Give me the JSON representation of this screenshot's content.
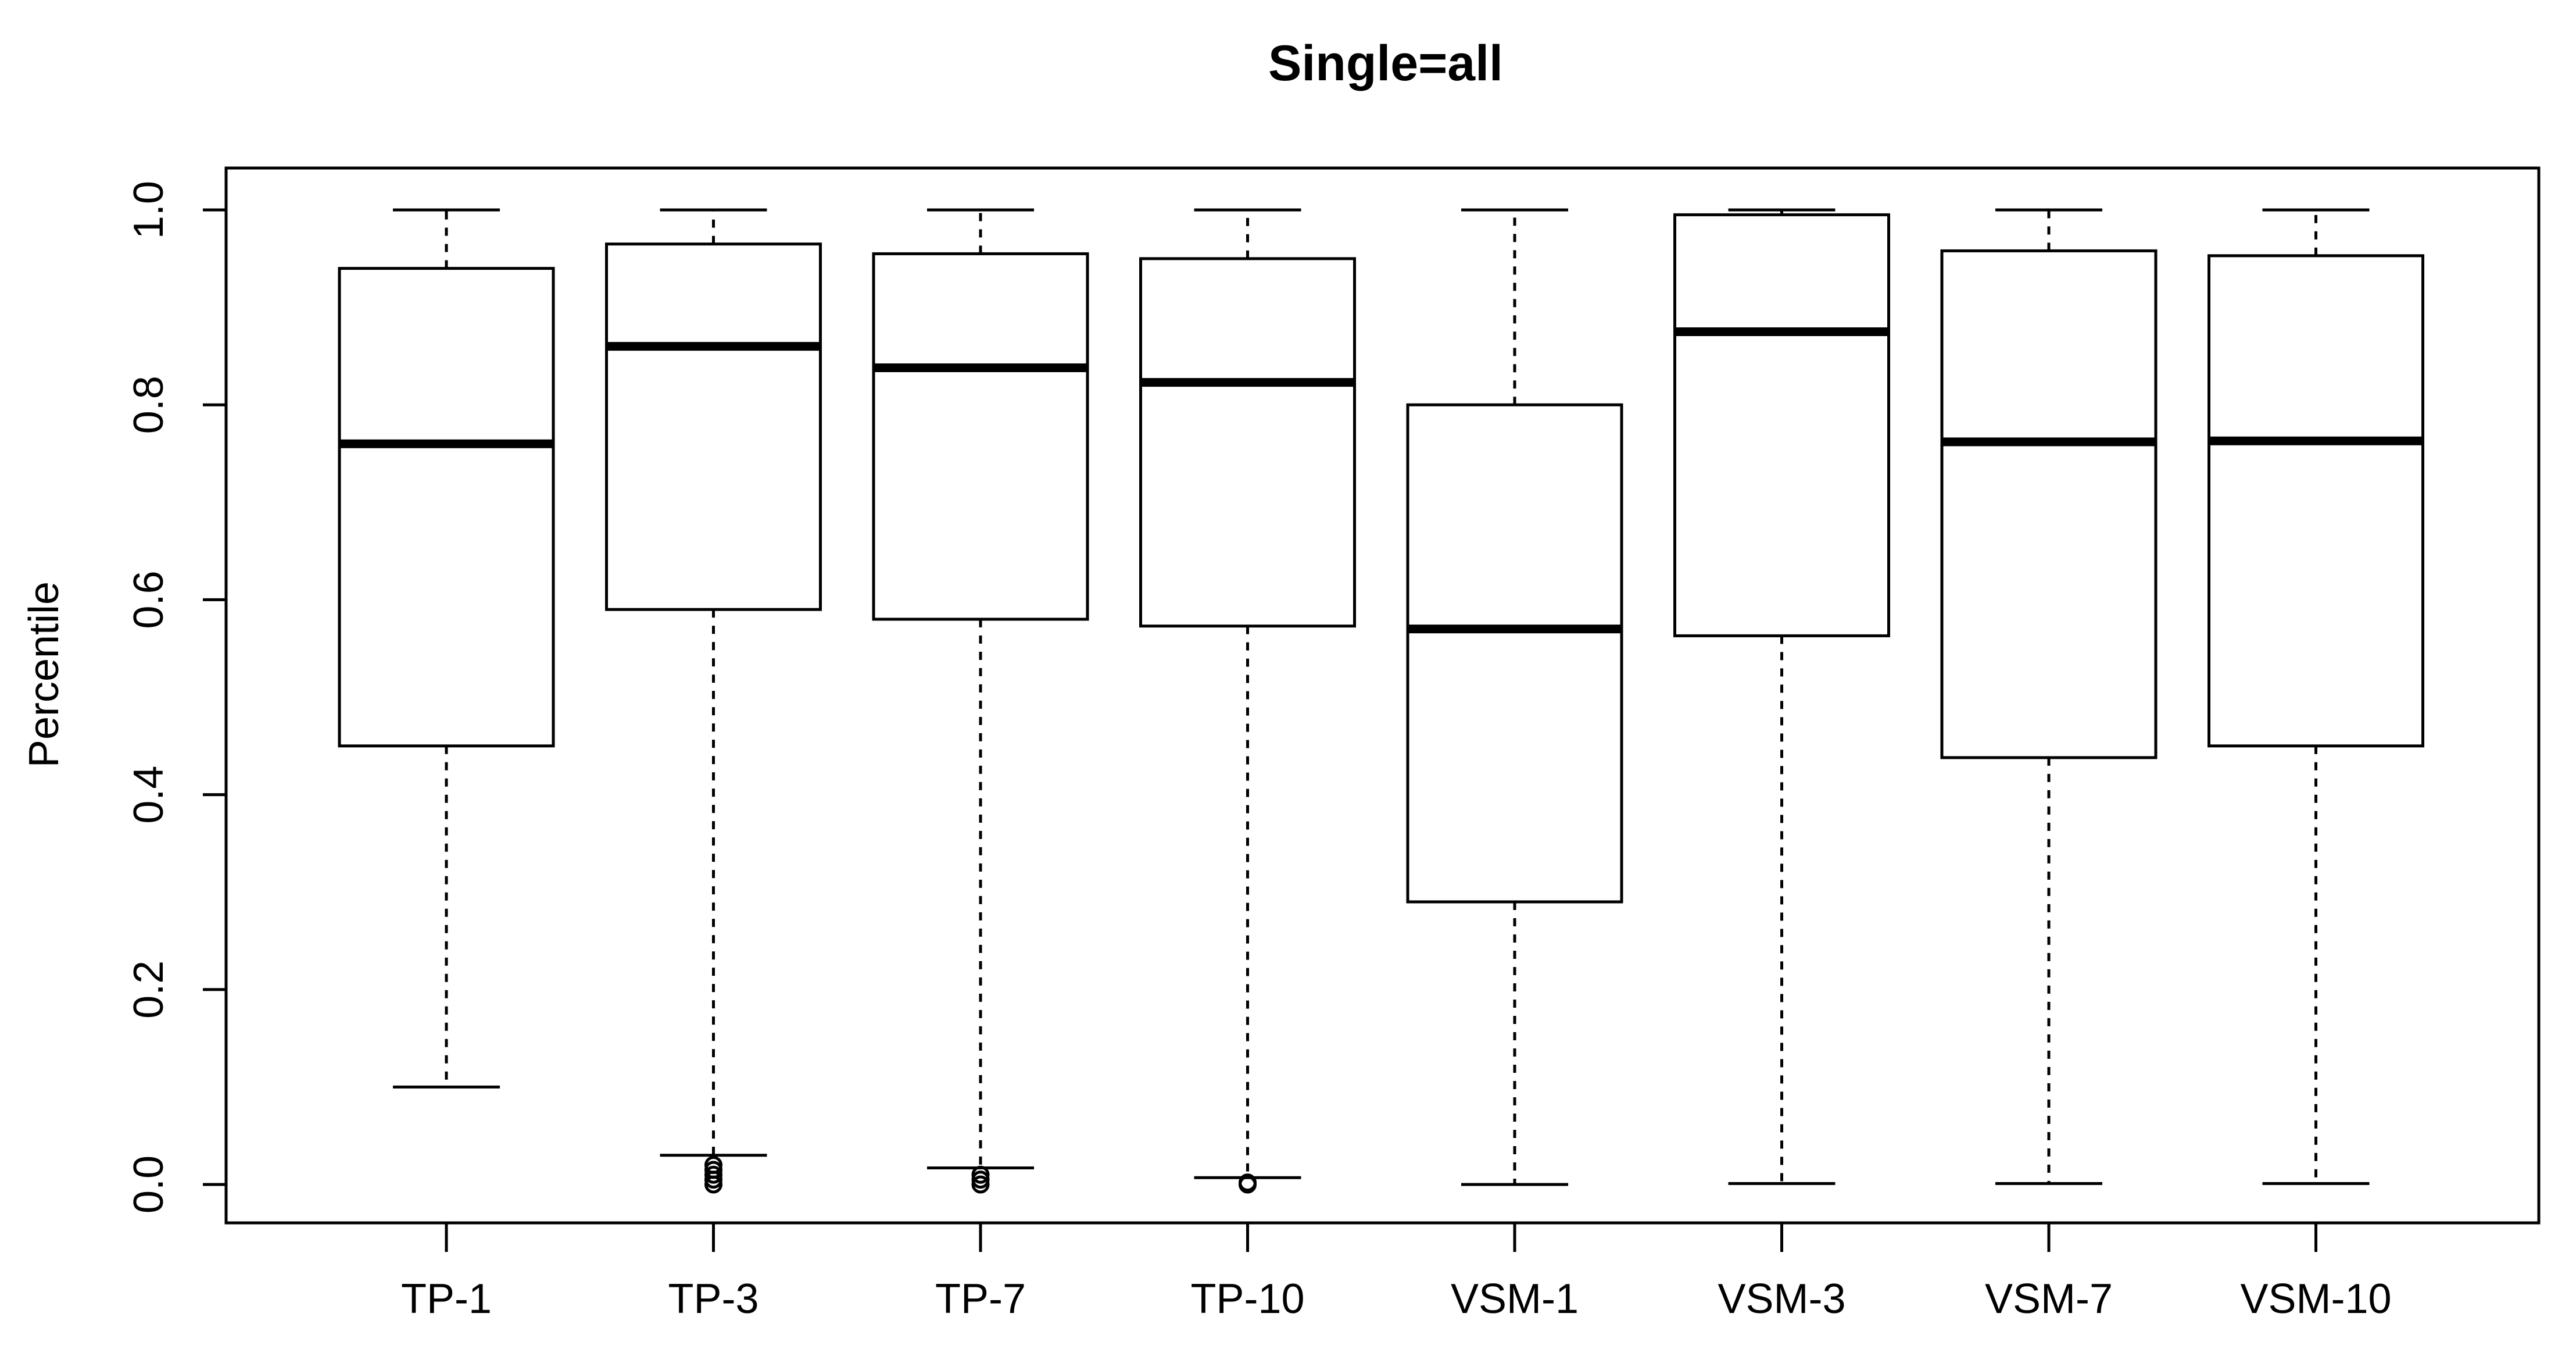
{
  "chart_data": {
    "type": "boxplot",
    "title": "Single=all",
    "xlabel": "",
    "ylabel": "Percentile",
    "ylim": [
      -0.04,
      1.04
    ],
    "yticks": [
      0.0,
      0.2,
      0.4,
      0.6,
      0.8,
      1.0
    ],
    "ytick_labels": [
      "0.0",
      "0.2",
      "0.4",
      "0.6",
      "0.8",
      "1.0"
    ],
    "grid": false,
    "categories": [
      "TP-1",
      "TP-3",
      "TP-7",
      "TP-10",
      "VSM-1",
      "VSM-3",
      "VSM-7",
      "VSM-10"
    ],
    "boxes": [
      {
        "label": "TP-1",
        "whisker_low": 0.1,
        "q1": 0.45,
        "median": 0.76,
        "q3": 0.94,
        "whisker_high": 1.0,
        "outliers": []
      },
      {
        "label": "TP-3",
        "whisker_low": 0.03,
        "q1": 0.59,
        "median": 0.86,
        "q3": 0.965,
        "whisker_high": 1.0,
        "outliers": [
          0.0,
          0.005,
          0.01,
          0.015,
          0.02
        ]
      },
      {
        "label": "TP-7",
        "whisker_low": 0.017,
        "q1": 0.58,
        "median": 0.838,
        "q3": 0.955,
        "whisker_high": 1.0,
        "outliers": [
          0.0,
          0.005,
          0.01
        ]
      },
      {
        "label": "TP-10",
        "whisker_low": 0.007,
        "q1": 0.573,
        "median": 0.823,
        "q3": 0.95,
        "whisker_high": 1.0,
        "outliers": [
          0.0,
          0.002
        ]
      },
      {
        "label": "VSM-1",
        "whisker_low": 0.0,
        "q1": 0.29,
        "median": 0.57,
        "q3": 0.8,
        "whisker_high": 1.0,
        "outliers": []
      },
      {
        "label": "VSM-3",
        "whisker_low": 0.001,
        "q1": 0.563,
        "median": 0.875,
        "q3": 0.995,
        "whisker_high": 1.0,
        "outliers": []
      },
      {
        "label": "VSM-7",
        "whisker_low": 0.001,
        "q1": 0.438,
        "median": 0.762,
        "q3": 0.958,
        "whisker_high": 1.0,
        "outliers": []
      },
      {
        "label": "VSM-10",
        "whisker_low": 0.001,
        "q1": 0.45,
        "median": 0.763,
        "q3": 0.953,
        "whisker_high": 1.0,
        "outliers": []
      }
    ]
  }
}
